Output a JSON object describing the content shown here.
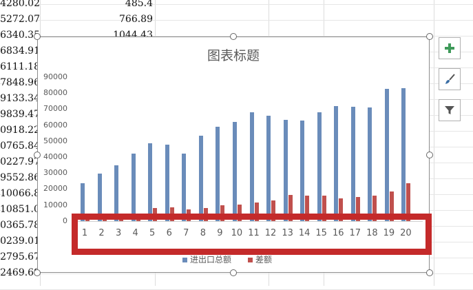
{
  "spreadsheet": {
    "col_a_values": [
      "4280.02",
      "5272.07",
      "6340.35",
      "6834.91",
      "6111.18",
      "7848.96",
      "9133.34",
      "9839.47",
      "0918.22",
      "0765.84",
      "0227.97",
      "9552.86",
      "10066.8",
      "10851.03",
      "0365.78",
      "0239.01",
      "2795.67",
      "2469.69"
    ],
    "col_b_values": [
      "485.4",
      "766.89",
      "1044.43"
    ]
  },
  "chart": {
    "title": "图表标题",
    "legend": [
      "进出口总额",
      "差额"
    ],
    "side_buttons": [
      "chart-elements-icon",
      "chart-styles-brush-icon",
      "chart-filter-icon"
    ]
  },
  "chart_data": {
    "type": "bar",
    "title": "图表标题",
    "categories": [
      "1",
      "2",
      "3",
      "4",
      "5",
      "6",
      "7",
      "8",
      "9",
      "10",
      "11",
      "12",
      "13",
      "14",
      "15",
      "16",
      "17",
      "18",
      "19",
      "20"
    ],
    "yticks": [
      "90000",
      "80000",
      "70000",
      "60000",
      "50000",
      "40000",
      "30000",
      "20000",
      "10000",
      "0"
    ],
    "ylim": [
      0,
      90000
    ],
    "grid": false,
    "legend_position": "bottom",
    "series": [
      {
        "name": "进出口总额",
        "color": "#6a8cba",
        "values": [
          23500,
          29500,
          35000,
          42000,
          48500,
          48000,
          42000,
          53500,
          59000,
          62000,
          68000,
          66000,
          63500,
          63000,
          68000,
          72000,
          71500,
          71000,
          82500,
          83000
        ]
      },
      {
        "name": "差额",
        "color": "#c0504d",
        "values": [
          1200,
          1100,
          1500,
          3000,
          8000,
          8500,
          7500,
          8000,
          10000,
          10500,
          11500,
          13000,
          16500,
          16000,
          16000,
          14000,
          15000,
          16000,
          18500,
          23500
        ]
      }
    ]
  }
}
